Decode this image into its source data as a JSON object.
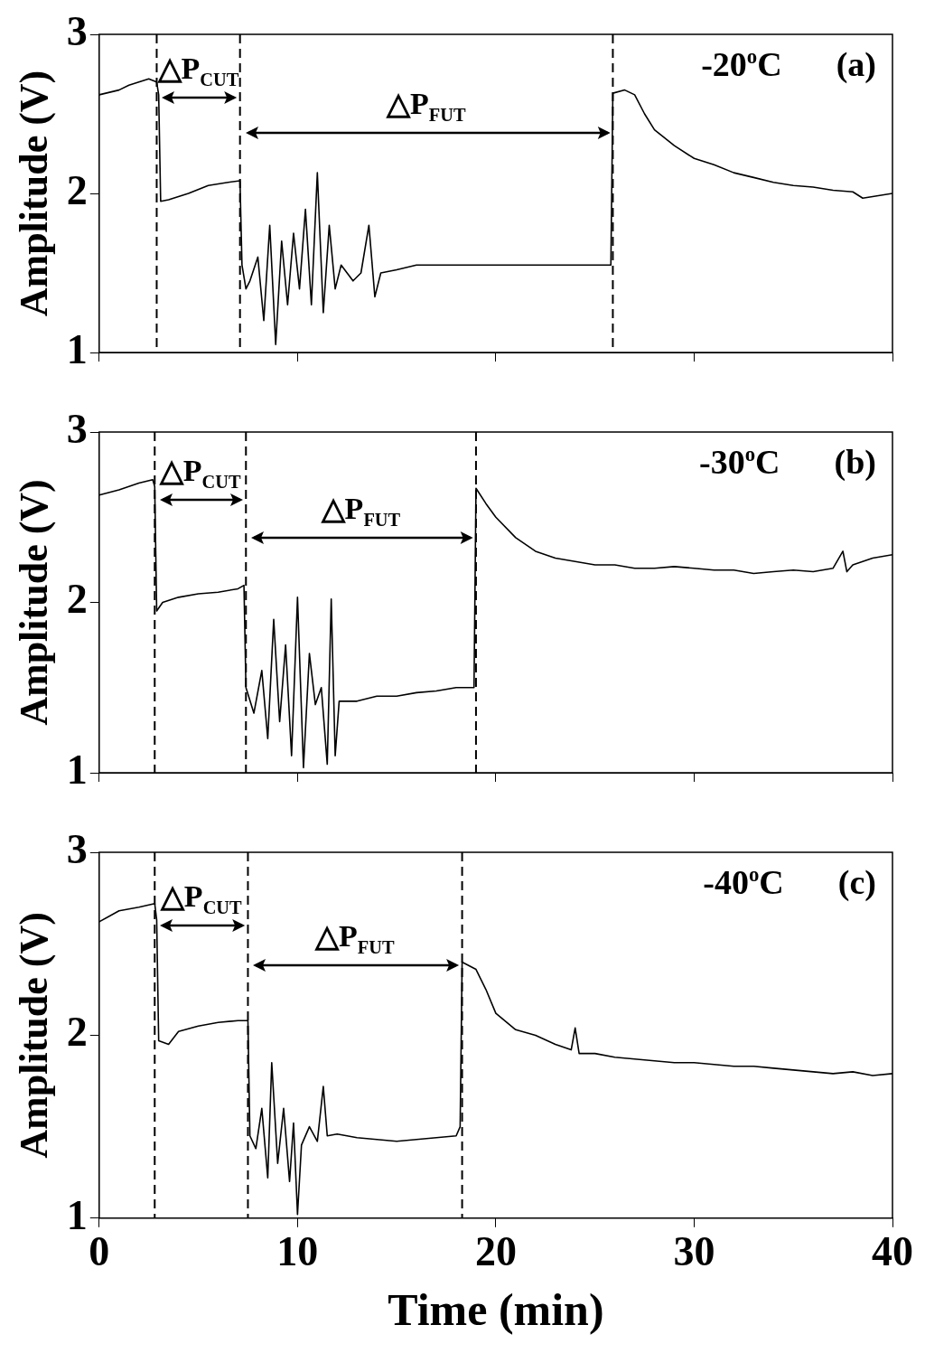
{
  "chart_data": [
    {
      "type": "line",
      "ylabel": "Amplitude (V)",
      "xlim": [
        0,
        40
      ],
      "xticks": [
        0,
        10,
        20,
        30,
        40
      ],
      "ylim": [
        1,
        3
      ],
      "yticks": [
        1,
        2,
        3
      ],
      "tick_labels": "y",
      "grid": false,
      "legend": false,
      "series": [
        {
          "color": "#000000",
          "x": [
            0,
            1,
            1.5,
            2,
            2.5,
            2.9,
            3.0,
            3.1,
            3.5,
            4.5,
            5.5,
            6.5,
            7.1,
            7.2,
            7.4,
            7.6,
            8,
            8.3,
            8.6,
            8.9,
            9.2,
            9.5,
            9.8,
            10.1,
            10.4,
            10.7,
            11,
            11.3,
            11.6,
            11.9,
            12.2,
            12.8,
            13.2,
            13.6,
            13.9,
            14.2,
            15,
            16,
            18,
            22,
            25.8,
            25.9,
            26.5,
            27,
            27.5,
            28,
            29,
            30,
            31,
            32,
            33,
            34,
            35,
            36,
            37,
            38,
            38.5,
            39,
            40
          ],
          "values": [
            2.62,
            2.65,
            2.68,
            2.7,
            2.72,
            2.7,
            2.62,
            1.95,
            1.96,
            2.0,
            2.05,
            2.07,
            2.08,
            1.55,
            1.4,
            1.45,
            1.6,
            1.2,
            1.8,
            1.05,
            1.7,
            1.3,
            1.75,
            1.4,
            1.9,
            1.3,
            2.13,
            1.25,
            1.8,
            1.4,
            1.55,
            1.45,
            1.5,
            1.8,
            1.35,
            1.5,
            1.52,
            1.55,
            1.55,
            1.55,
            1.55,
            2.63,
            2.65,
            2.62,
            2.5,
            2.4,
            2.3,
            2.22,
            2.18,
            2.13,
            2.1,
            2.07,
            2.05,
            2.04,
            2.02,
            2.01,
            1.97,
            1.98,
            2.0
          ]
        }
      ],
      "ref_lines": [
        {
          "axis": "x",
          "value": 2.9,
          "line_style": "dashed"
        },
        {
          "axis": "x",
          "value": 7.1,
          "line_style": "dashed"
        },
        {
          "axis": "x",
          "value": 25.9,
          "line_style": "dashed"
        }
      ],
      "annotations": [
        "-20$^{o}$C",
        "(a)",
        "△P$_{CUT}$",
        "△P$_{FUT}$"
      ]
    },
    {
      "type": "line",
      "ylabel": "Amplitude (V)",
      "xlim": [
        0,
        40
      ],
      "xticks": [
        0,
        10,
        20,
        30,
        40
      ],
      "ylim": [
        1,
        3
      ],
      "yticks": [
        1,
        2,
        3
      ],
      "tick_labels": "y",
      "grid": false,
      "legend": false,
      "series": [
        {
          "color": "#000000",
          "x": [
            0,
            1,
            2,
            2.7,
            2.8,
            2.9,
            3.2,
            4,
            5,
            6,
            7,
            7.3,
            7.4,
            7.8,
            8.2,
            8.5,
            8.8,
            9.1,
            9.4,
            9.7,
            10,
            10.3,
            10.6,
            10.9,
            11.2,
            11.5,
            11.7,
            11.9,
            12.1,
            13,
            14,
            15,
            16,
            17,
            18,
            18.9,
            19,
            19.5,
            20,
            21,
            22,
            23,
            24,
            25,
            26,
            27,
            28,
            29,
            30,
            31,
            32,
            33,
            34,
            35,
            36,
            37,
            37.5,
            37.7,
            38,
            39,
            40
          ],
          "values": [
            2.63,
            2.66,
            2.7,
            2.72,
            2.68,
            1.95,
            2.0,
            2.03,
            2.05,
            2.06,
            2.08,
            2.1,
            1.5,
            1.35,
            1.6,
            1.2,
            1.9,
            1.3,
            1.75,
            1.1,
            2.03,
            1.03,
            1.7,
            1.4,
            1.5,
            1.05,
            2.02,
            1.1,
            1.42,
            1.42,
            1.45,
            1.45,
            1.47,
            1.48,
            1.5,
            1.5,
            2.67,
            2.58,
            2.5,
            2.38,
            2.3,
            2.26,
            2.24,
            2.22,
            2.22,
            2.2,
            2.2,
            2.21,
            2.2,
            2.19,
            2.19,
            2.17,
            2.18,
            2.19,
            2.18,
            2.2,
            2.3,
            2.18,
            2.22,
            2.26,
            2.28
          ]
        }
      ],
      "ref_lines": [
        {
          "axis": "x",
          "value": 2.8,
          "line_style": "dashed"
        },
        {
          "axis": "x",
          "value": 7.4,
          "line_style": "dashed"
        },
        {
          "axis": "x",
          "value": 19.0,
          "line_style": "dashed"
        }
      ],
      "annotations": [
        "-30$^{o}$C",
        "(b)",
        "△P$_{CUT}$",
        "△P$_{FUT}$"
      ]
    },
    {
      "type": "line",
      "ylabel": "Amplitude (V)",
      "xlabel": "Time (min)",
      "xlim": [
        0,
        40
      ],
      "xticks": [
        0,
        10,
        20,
        30,
        40
      ],
      "ylim": [
        1,
        3
      ],
      "yticks": [
        1,
        2,
        3
      ],
      "grid": false,
      "legend": false,
      "series": [
        {
          "color": "#000000",
          "x": [
            0,
            1,
            2,
            2.8,
            2.9,
            3,
            3.5,
            4,
            5,
            6,
            7,
            7.5,
            7.6,
            7.9,
            8.2,
            8.5,
            8.7,
            9,
            9.3,
            9.6,
            9.8,
            10,
            10.2,
            10.6,
            11,
            11.3,
            11.5,
            12,
            13,
            14,
            15,
            16,
            17,
            18,
            18.2,
            18.3,
            19,
            19.5,
            20,
            21,
            22,
            23,
            23.8,
            24,
            24.2,
            25,
            26,
            27,
            28,
            29,
            30,
            31,
            32,
            33,
            34,
            35,
            36,
            37,
            38,
            39,
            40
          ],
          "values": [
            2.62,
            2.68,
            2.7,
            2.72,
            2.63,
            1.97,
            1.95,
            2.02,
            2.05,
            2.07,
            2.08,
            2.08,
            1.45,
            1.38,
            1.6,
            1.22,
            1.85,
            1.3,
            1.6,
            1.2,
            1.52,
            1.02,
            1.4,
            1.5,
            1.42,
            1.72,
            1.45,
            1.46,
            1.44,
            1.43,
            1.42,
            1.43,
            1.44,
            1.45,
            1.5,
            2.4,
            2.36,
            2.25,
            2.12,
            2.03,
            2.0,
            1.95,
            1.92,
            2.04,
            1.9,
            1.9,
            1.88,
            1.87,
            1.86,
            1.85,
            1.85,
            1.84,
            1.83,
            1.83,
            1.82,
            1.81,
            1.8,
            1.79,
            1.8,
            1.78,
            1.79
          ]
        }
      ],
      "ref_lines": [
        {
          "axis": "x",
          "value": 2.8,
          "line_style": "dashed"
        },
        {
          "axis": "x",
          "value": 7.5,
          "line_style": "dashed"
        },
        {
          "axis": "x",
          "value": 18.3,
          "line_style": "dashed"
        }
      ],
      "annotations": [
        "-40$^{o}$C",
        "(c)",
        "△P$_{CUT}$",
        "△P$_{FUT}$"
      ]
    }
  ]
}
